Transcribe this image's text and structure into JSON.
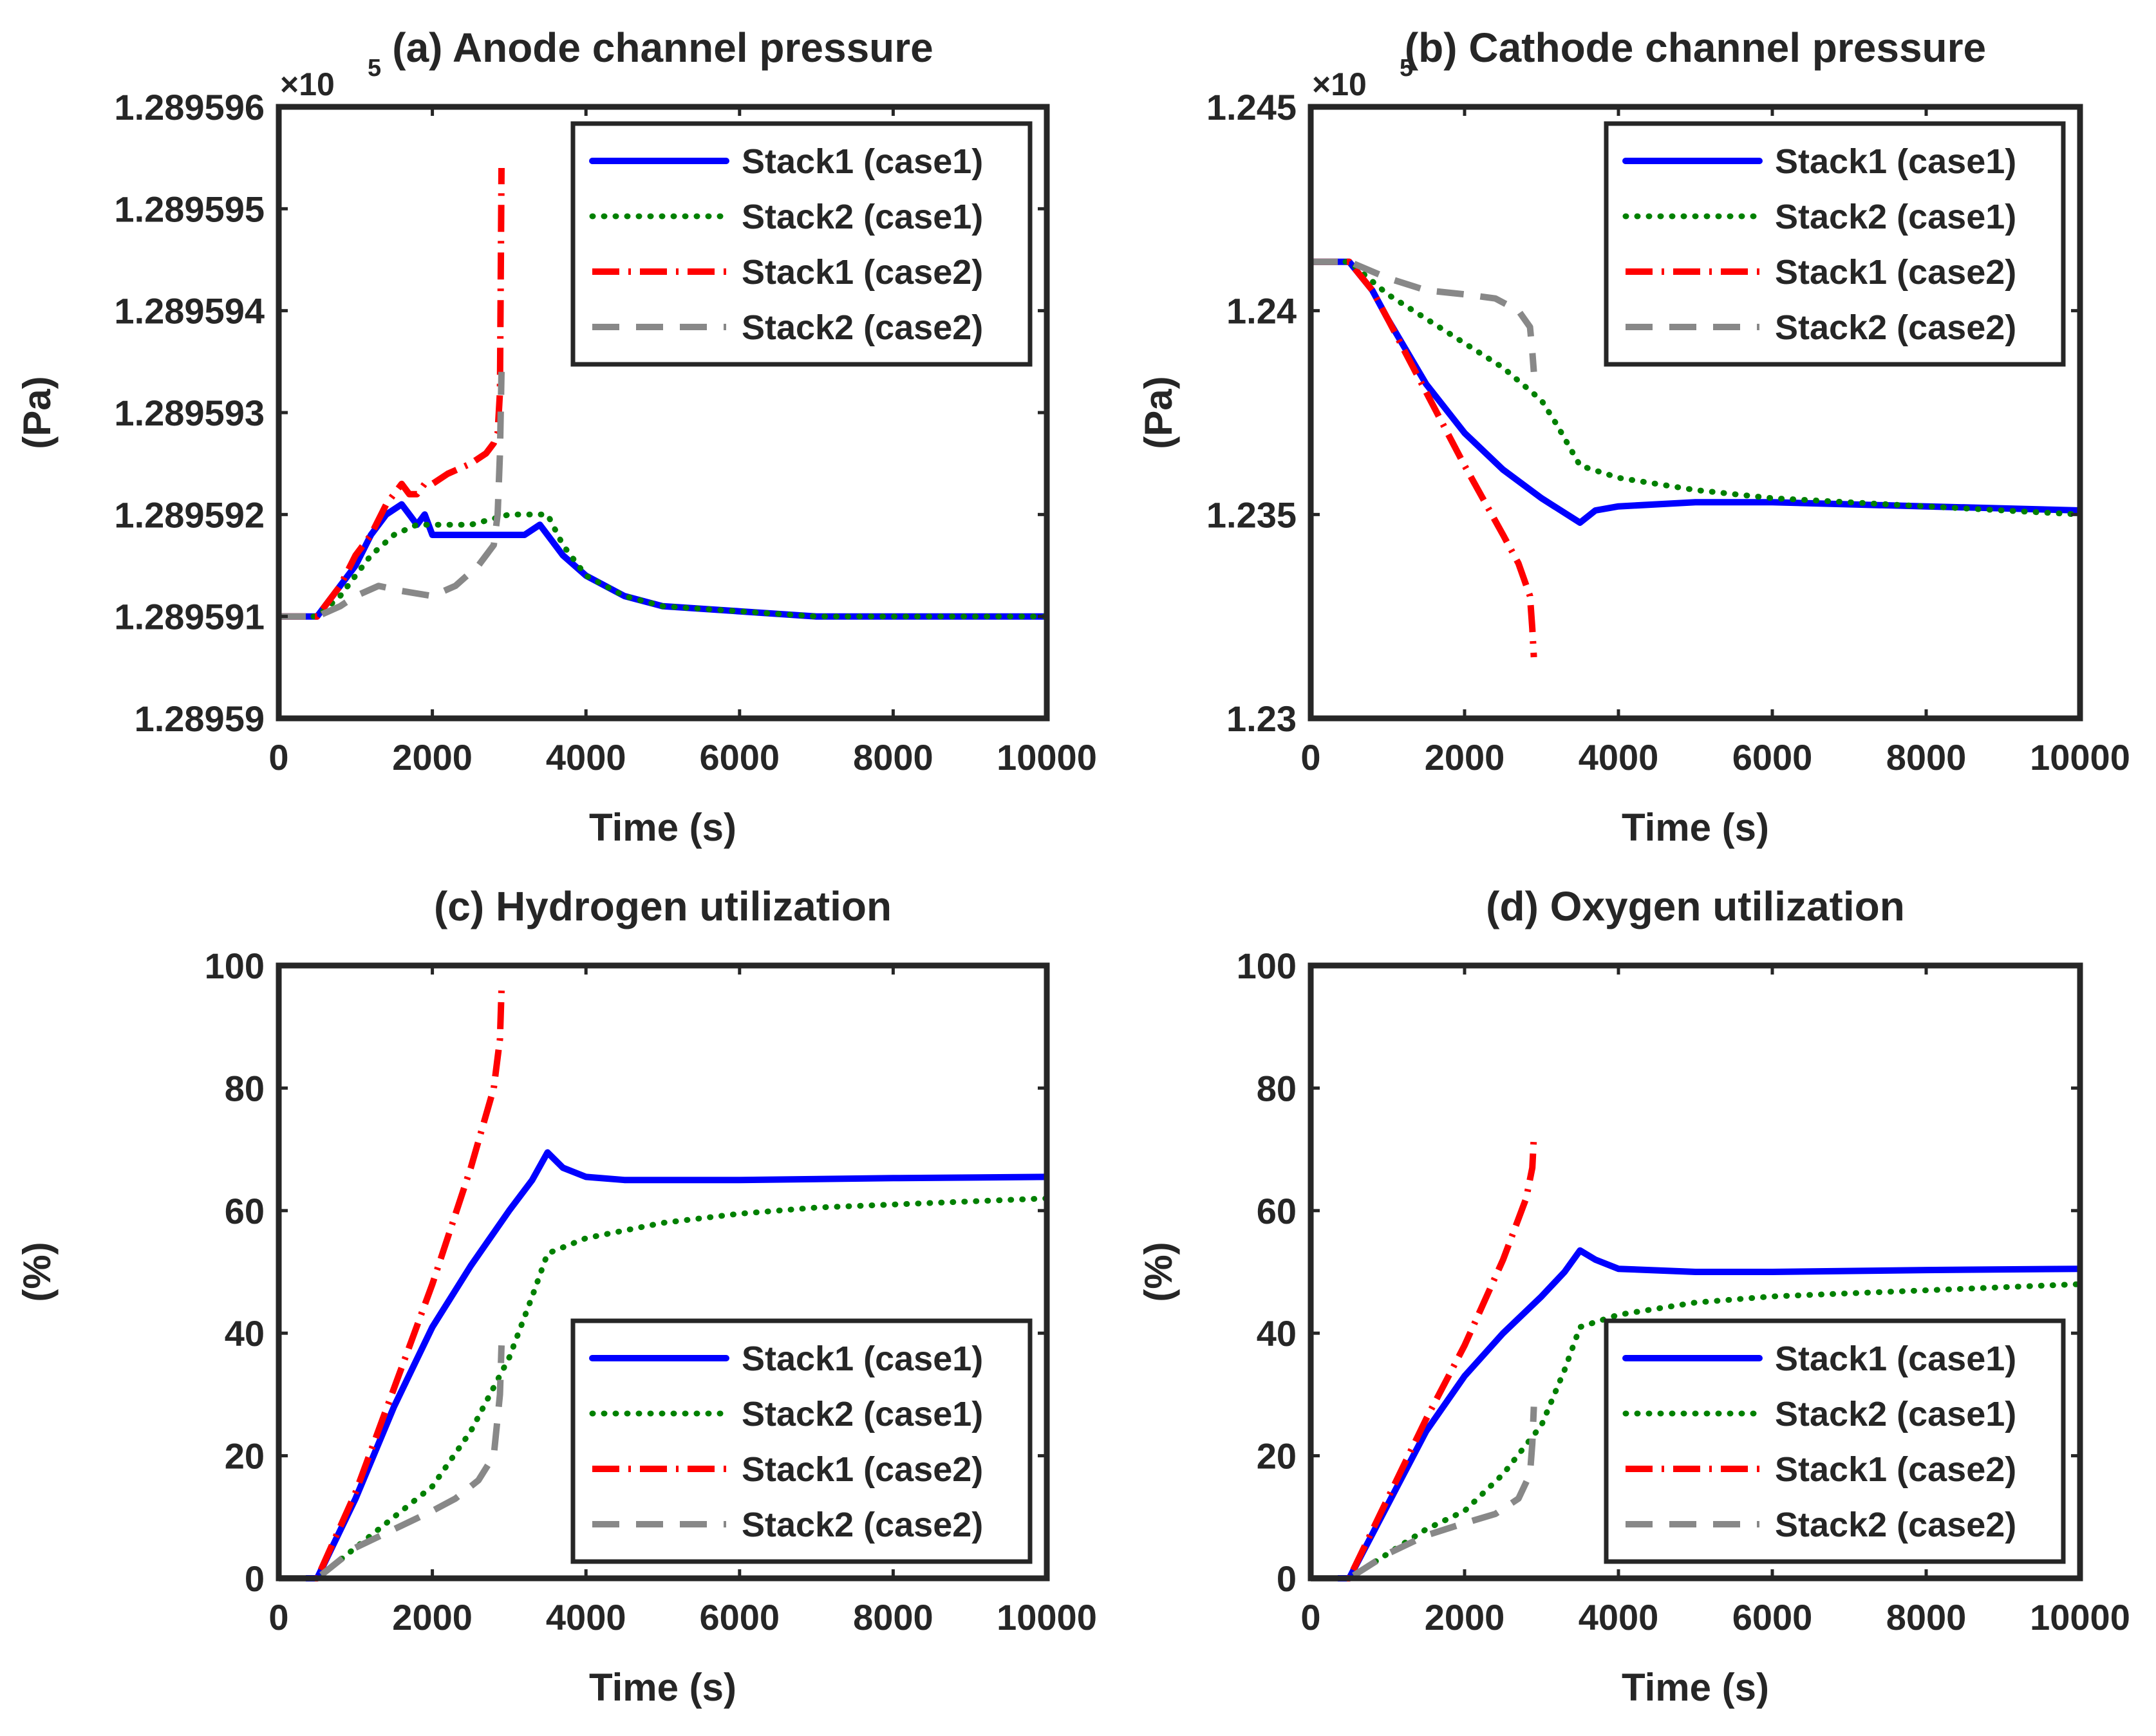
{
  "chart_data": [
    {
      "id": "a",
      "type": "line",
      "title": "(a) Anode channel pressure",
      "xlabel": "Time (s)",
      "ylabel": "(Pa)",
      "xlim": [
        0,
        10000
      ],
      "ylim": [
        1.28959,
        1.289596
      ],
      "xticks": [
        0,
        2000,
        4000,
        6000,
        8000,
        10000
      ],
      "xtick_labels": [
        "0",
        "2000",
        "4000",
        "6000",
        "8000",
        "10000"
      ],
      "yticks": [
        1.28959,
        1.289591,
        1.289592,
        1.289593,
        1.289594,
        1.289595,
        1.289596
      ],
      "ytick_labels": [
        "1.28959",
        "1.289591",
        "1.289592",
        "1.289593",
        "1.289594",
        "1.289595",
        "1.289596"
      ],
      "y_exponent": {
        "base": "×10",
        "power": "5"
      },
      "legend_position": "top-right",
      "series": [
        {
          "name": "Stack1 (case1)",
          "style": "solid",
          "color": "#0000ff",
          "x": [
            0,
            500,
            800,
            1000,
            1200,
            1400,
            1600,
            1700,
            1800,
            1900,
            2000,
            2200,
            2500,
            2800,
            3000,
            3200,
            3400,
            3500,
            3700,
            4000,
            4500,
            5000,
            6000,
            7000,
            8000,
            9000,
            10000
          ],
          "y": [
            1.289591,
            1.289591,
            1.2895913,
            1.2895915,
            1.2895918,
            1.289592,
            1.2895921,
            1.289592,
            1.2895919,
            1.289592,
            1.2895918,
            1.2895918,
            1.2895918,
            1.2895918,
            1.2895918,
            1.2895918,
            1.2895919,
            1.2895918,
            1.2895916,
            1.2895914,
            1.2895912,
            1.2895911,
            1.28959105,
            1.289591,
            1.289591,
            1.289591,
            1.289591
          ]
        },
        {
          "name": "Stack2 (case1)",
          "style": "dotted",
          "color": "#008000",
          "x": [
            0,
            500,
            800,
            1000,
            1200,
            1500,
            1800,
            2000,
            2500,
            3000,
            3300,
            3500,
            3700,
            4000,
            4500,
            5000,
            6000,
            7000,
            8000,
            9000,
            10000
          ],
          "y": [
            1.289591,
            1.289591,
            1.2895912,
            1.2895914,
            1.2895916,
            1.2895918,
            1.2895919,
            1.2895919,
            1.2895919,
            1.289592,
            1.289592,
            1.289592,
            1.2895917,
            1.2895914,
            1.2895912,
            1.2895911,
            1.28959105,
            1.289591,
            1.289591,
            1.289591,
            1.289591
          ]
        },
        {
          "name": "Stack1 (case2)",
          "style": "dashdot",
          "color": "#ff0000",
          "x": [
            0,
            500,
            800,
            1000,
            1200,
            1400,
            1600,
            1700,
            1800,
            1900,
            2000,
            2200,
            2500,
            2700,
            2800,
            2850,
            2880,
            2900
          ],
          "y": [
            1.289591,
            1.289591,
            1.2895913,
            1.2895916,
            1.2895918,
            1.2895921,
            1.2895923,
            1.2895922,
            1.2895922,
            1.2895923,
            1.2895923,
            1.2895924,
            1.2895925,
            1.2895926,
            1.2895927,
            1.2895928,
            1.2895932,
            1.2895954
          ]
        },
        {
          "name": "Stack2 (case2)",
          "style": "dashed",
          "color": "#888888",
          "x": [
            0,
            500,
            800,
            1000,
            1300,
            1600,
            2000,
            2300,
            2600,
            2800,
            2850,
            2880,
            2900
          ],
          "y": [
            1.289591,
            1.289591,
            1.2895911,
            1.2895912,
            1.2895913,
            1.28959125,
            1.2895912,
            1.2895913,
            1.2895915,
            1.2895917,
            1.289592,
            1.2895926,
            1.2895934
          ]
        }
      ]
    },
    {
      "id": "b",
      "type": "line",
      "title": "(b) Cathode channel pressure",
      "xlabel": "Time (s)",
      "ylabel": "(Pa)",
      "xlim": [
        0,
        10000
      ],
      "ylim": [
        1.23,
        1.245
      ],
      "xticks": [
        0,
        2000,
        4000,
        6000,
        8000,
        10000
      ],
      "xtick_labels": [
        "0",
        "2000",
        "4000",
        "6000",
        "8000",
        "10000"
      ],
      "yticks": [
        1.23,
        1.235,
        1.24,
        1.245
      ],
      "ytick_labels": [
        "1.23",
        "1.235",
        "1.24",
        "1.245"
      ],
      "y_exponent": {
        "base": "×10",
        "power": "5"
      },
      "legend_position": "top-right",
      "series": [
        {
          "name": "Stack1 (case1)",
          "style": "solid",
          "color": "#0000ff",
          "x": [
            0,
            500,
            800,
            1000,
            1500,
            2000,
            2500,
            3000,
            3500,
            3700,
            4000,
            5000,
            6000,
            8000,
            10000
          ],
          "y": [
            1.2412,
            1.2412,
            1.2405,
            1.2398,
            1.2382,
            1.237,
            1.2361,
            1.2354,
            1.2348,
            1.2351,
            1.2352,
            1.2353,
            1.2353,
            1.2352,
            1.2351
          ]
        },
        {
          "name": "Stack2 (case1)",
          "style": "dotted",
          "color": "#008000",
          "x": [
            0,
            500,
            1000,
            1500,
            2000,
            2500,
            3000,
            3200,
            3500,
            4000,
            5000,
            6000,
            7000,
            8000,
            10000
          ],
          "y": [
            1.2412,
            1.2412,
            1.2404,
            1.2398,
            1.2392,
            1.2386,
            1.2378,
            1.2372,
            1.2362,
            1.2359,
            1.2356,
            1.2354,
            1.2353,
            1.2352,
            1.235
          ]
        },
        {
          "name": "Stack1 (case2)",
          "style": "dashdot",
          "color": "#ff0000",
          "x": [
            0,
            500,
            800,
            1000,
            1500,
            2000,
            2500,
            2700,
            2850,
            2880,
            2900
          ],
          "y": [
            1.2412,
            1.2412,
            1.2405,
            1.2398,
            1.238,
            1.2362,
            1.2345,
            1.2338,
            1.233,
            1.2322,
            1.2315
          ]
        },
        {
          "name": "Stack2 (case2)",
          "style": "dashed",
          "color": "#888888",
          "x": [
            0,
            500,
            1000,
            1500,
            2000,
            2400,
            2700,
            2850,
            2880,
            2900
          ],
          "y": [
            1.2412,
            1.2412,
            1.2408,
            1.2405,
            1.2404,
            1.2403,
            1.24,
            1.2396,
            1.239,
            1.2385
          ]
        }
      ]
    },
    {
      "id": "c",
      "type": "line",
      "title": "(c) Hydrogen utilization",
      "xlabel": "Time (s)",
      "ylabel": "(%)",
      "xlim": [
        0,
        10000
      ],
      "ylim": [
        0,
        100
      ],
      "xticks": [
        0,
        2000,
        4000,
        6000,
        8000,
        10000
      ],
      "xtick_labels": [
        "0",
        "2000",
        "4000",
        "6000",
        "8000",
        "10000"
      ],
      "yticks": [
        0,
        20,
        40,
        60,
        80,
        100
      ],
      "ytick_labels": [
        "0",
        "20",
        "40",
        "60",
        "80",
        "100"
      ],
      "legend_position": "bottom-right",
      "series": [
        {
          "name": "Stack1 (case1)",
          "style": "solid",
          "color": "#0000ff",
          "x": [
            0,
            500,
            1000,
            1500,
            2000,
            2500,
            3000,
            3300,
            3500,
            3700,
            4000,
            4500,
            5000,
            6000,
            8000,
            10000
          ],
          "y": [
            0,
            0,
            13,
            28,
            41,
            51,
            60,
            65,
            69.5,
            67,
            65.5,
            65,
            65,
            65,
            65.3,
            65.5
          ]
        },
        {
          "name": "Stack2 (case1)",
          "style": "dotted",
          "color": "#008000",
          "x": [
            0,
            500,
            1000,
            1500,
            2000,
            2500,
            3000,
            3300,
            3500,
            4000,
            5000,
            6000,
            7000,
            8000,
            9000,
            10000
          ],
          "y": [
            0,
            0,
            5,
            10,
            15,
            24,
            36,
            46,
            53,
            55.5,
            58,
            59.5,
            60.5,
            61,
            61.5,
            62
          ]
        },
        {
          "name": "Stack1 (case2)",
          "style": "dashdot",
          "color": "#ff0000",
          "x": [
            0,
            500,
            1000,
            1500,
            2000,
            2500,
            2800,
            2880,
            2900
          ],
          "y": [
            0,
            0,
            14,
            31,
            48,
            67,
            80,
            88,
            96
          ]
        },
        {
          "name": "Stack2 (case2)",
          "style": "dashed",
          "color": "#888888",
          "x": [
            0,
            500,
            1000,
            1500,
            2000,
            2300,
            2600,
            2800,
            2880,
            2900
          ],
          "y": [
            0,
            0,
            5,
            8,
            11,
            13,
            16,
            20,
            30,
            38
          ]
        }
      ]
    },
    {
      "id": "d",
      "type": "line",
      "title": "(d) Oxygen utilization",
      "xlabel": "Time (s)",
      "ylabel": "(%)",
      "xlim": [
        0,
        10000
      ],
      "ylim": [
        0,
        100
      ],
      "xticks": [
        0,
        2000,
        4000,
        6000,
        8000,
        10000
      ],
      "xtick_labels": [
        "0",
        "2000",
        "4000",
        "6000",
        "8000",
        "10000"
      ],
      "yticks": [
        0,
        20,
        40,
        60,
        80,
        100
      ],
      "ytick_labels": [
        "0",
        "20",
        "40",
        "60",
        "80",
        "100"
      ],
      "legend_position": "bottom-right",
      "series": [
        {
          "name": "Stack1 (case1)",
          "style": "solid",
          "color": "#0000ff",
          "x": [
            0,
            500,
            1000,
            1500,
            2000,
            2500,
            3000,
            3300,
            3500,
            3700,
            4000,
            5000,
            6000,
            8000,
            10000
          ],
          "y": [
            0,
            0,
            12,
            24,
            33,
            40,
            46,
            50,
            53.5,
            52,
            50.5,
            50,
            50,
            50.3,
            50.5
          ]
        },
        {
          "name": "Stack2 (case1)",
          "style": "dotted",
          "color": "#008000",
          "x": [
            0,
            500,
            1000,
            1500,
            2000,
            2500,
            3000,
            3300,
            3500,
            4000,
            5000,
            6000,
            7000,
            8000,
            9000,
            10000
          ],
          "y": [
            0,
            0,
            4,
            8,
            11,
            17,
            25,
            34,
            41,
            43,
            45,
            46,
            46.5,
            47,
            47.5,
            48
          ]
        },
        {
          "name": "Stack1 (case2)",
          "style": "dashdot",
          "color": "#ff0000",
          "x": [
            0,
            500,
            1000,
            1500,
            2000,
            2500,
            2800,
            2880,
            2900
          ],
          "y": [
            0,
            0,
            13,
            26,
            38,
            52,
            62,
            67,
            72
          ]
        },
        {
          "name": "Stack2 (case2)",
          "style": "dashed",
          "color": "#888888",
          "x": [
            0,
            500,
            1000,
            1500,
            2000,
            2400,
            2700,
            2850,
            2880,
            2900
          ],
          "y": [
            0,
            0,
            4,
            7,
            9,
            10.5,
            13,
            17,
            22,
            28
          ]
        }
      ]
    }
  ]
}
